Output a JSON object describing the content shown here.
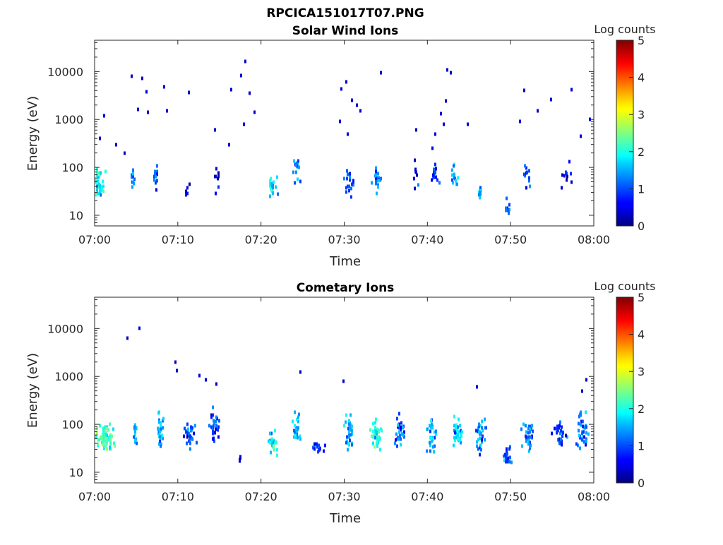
{
  "figure": {
    "title": "RPCICA151017T07.PNG"
  },
  "chart_data": [
    {
      "type": "heatmap",
      "title": "Solar Wind Ions",
      "xlabel": "Time",
      "ylabel": "Energy (eV)",
      "x_ticks": [
        "07:00",
        "07:10",
        "07:20",
        "07:30",
        "07:40",
        "07:50",
        "08:00"
      ],
      "y_ticks": [
        "10",
        "100",
        "1000",
        "10000"
      ],
      "y_scale": "log",
      "ylim": [
        6,
        45000
      ],
      "xlim_minutes": [
        0,
        60
      ],
      "colorbar": {
        "label": "Log counts",
        "ticks": [
          "0",
          "1",
          "2",
          "3",
          "4",
          "5"
        ],
        "range": [
          0,
          5
        ],
        "colormap": "jet"
      },
      "clusters": [
        {
          "t": 0.3,
          "e": 45,
          "dt": 2.2,
          "de": 2.5,
          "v": 2.2,
          "n": 45
        },
        {
          "t": 4.5,
          "e": 60,
          "dt": 0.6,
          "de": 2.0,
          "v": 1.5,
          "n": 10
        },
        {
          "t": 7.2,
          "e": 60,
          "dt": 0.7,
          "de": 3.0,
          "v": 1.4,
          "n": 14
        },
        {
          "t": 11.0,
          "e": 35,
          "dt": 0.6,
          "de": 1.8,
          "v": 0.8,
          "n": 5
        },
        {
          "t": 14.5,
          "e": 80,
          "dt": 1.0,
          "de": 3.0,
          "v": 0.8,
          "n": 8
        },
        {
          "t": 21.2,
          "e": 40,
          "dt": 1.5,
          "de": 2.0,
          "v": 2.0,
          "n": 22
        },
        {
          "t": 24.3,
          "e": 90,
          "dt": 1.0,
          "de": 2.8,
          "v": 1.8,
          "n": 14
        },
        {
          "t": 30.5,
          "e": 50,
          "dt": 1.2,
          "de": 2.5,
          "v": 1.3,
          "n": 18
        },
        {
          "t": 33.8,
          "e": 55,
          "dt": 1.2,
          "de": 2.5,
          "v": 1.6,
          "n": 20
        },
        {
          "t": 38.5,
          "e": 70,
          "dt": 0.9,
          "de": 2.5,
          "v": 1.0,
          "n": 8
        },
        {
          "t": 40.8,
          "e": 70,
          "dt": 1.0,
          "de": 2.5,
          "v": 1.3,
          "n": 14
        },
        {
          "t": 43.2,
          "e": 60,
          "dt": 1.2,
          "de": 2.3,
          "v": 1.8,
          "n": 14
        },
        {
          "t": 46.2,
          "e": 30,
          "dt": 0.8,
          "de": 1.6,
          "v": 2.0,
          "n": 10
        },
        {
          "t": 49.5,
          "e": 15,
          "dt": 0.6,
          "de": 2.0,
          "v": 1.2,
          "n": 8
        },
        {
          "t": 51.8,
          "e": 60,
          "dt": 1.0,
          "de": 2.5,
          "v": 1.3,
          "n": 12
        },
        {
          "t": 56.5,
          "e": 70,
          "dt": 1.8,
          "de": 2.5,
          "v": 0.9,
          "n": 10
        }
      ],
      "scatter": [
        {
          "t": 4.3,
          "e": 8000
        },
        {
          "t": 5.6,
          "e": 7300
        },
        {
          "t": 6.1,
          "e": 3800
        },
        {
          "t": 5.1,
          "e": 1600
        },
        {
          "t": 6.3,
          "e": 1400
        },
        {
          "t": 8.2,
          "e": 4800
        },
        {
          "t": 8.6,
          "e": 1500
        },
        {
          "t": 11.2,
          "e": 3600
        },
        {
          "t": 16.3,
          "e": 4200
        },
        {
          "t": 17.5,
          "e": 8300
        },
        {
          "t": 18.0,
          "e": 16000
        },
        {
          "t": 18.5,
          "e": 3500
        },
        {
          "t": 17.8,
          "e": 800
        },
        {
          "t": 19.1,
          "e": 1400
        },
        {
          "t": 16.0,
          "e": 300
        },
        {
          "t": 14.3,
          "e": 600
        },
        {
          "t": 29.5,
          "e": 4300
        },
        {
          "t": 30.1,
          "e": 6100
        },
        {
          "t": 30.8,
          "e": 2500
        },
        {
          "t": 31.4,
          "e": 2000
        },
        {
          "t": 29.4,
          "e": 900
        },
        {
          "t": 31.8,
          "e": 1500
        },
        {
          "t": 30.3,
          "e": 500
        },
        {
          "t": 34.3,
          "e": 9300
        },
        {
          "t": 38.5,
          "e": 600
        },
        {
          "t": 40.8,
          "e": 500
        },
        {
          "t": 41.5,
          "e": 1300
        },
        {
          "t": 42.1,
          "e": 2400
        },
        {
          "t": 42.7,
          "e": 9500
        },
        {
          "t": 42.3,
          "e": 11000
        },
        {
          "t": 41.8,
          "e": 800
        },
        {
          "t": 40.5,
          "e": 250
        },
        {
          "t": 44.7,
          "e": 800
        },
        {
          "t": 51.5,
          "e": 4000
        },
        {
          "t": 53.1,
          "e": 1500
        },
        {
          "t": 54.7,
          "e": 2600
        },
        {
          "t": 57.2,
          "e": 4200
        },
        {
          "t": 59.4,
          "e": 1000
        },
        {
          "t": 58.3,
          "e": 450
        },
        {
          "t": 51.0,
          "e": 900
        },
        {
          "t": 1.0,
          "e": 1200
        },
        {
          "t": 2.5,
          "e": 300
        },
        {
          "t": 3.5,
          "e": 200
        },
        {
          "t": 0.5,
          "e": 400
        }
      ]
    },
    {
      "type": "heatmap",
      "title": "Cometary Ions",
      "xlabel": "Time",
      "ylabel": "Energy (eV)",
      "x_ticks": [
        "07:00",
        "07:10",
        "07:20",
        "07:30",
        "07:40",
        "07:50",
        "08:00"
      ],
      "y_ticks": [
        "10",
        "100",
        "1000",
        "10000"
      ],
      "y_scale": "log",
      "ylim": [
        6,
        45000
      ],
      "xlim_minutes": [
        0,
        60
      ],
      "colorbar": {
        "label": "Log counts",
        "ticks": [
          "0",
          "1",
          "2",
          "3",
          "4",
          "5"
        ],
        "range": [
          0,
          5
        ],
        "colormap": "jet"
      },
      "clusters": [
        {
          "t": 1.0,
          "e": 50,
          "dt": 2.5,
          "de": 2.5,
          "v": 2.5,
          "n": 70
        },
        {
          "t": 4.8,
          "e": 60,
          "dt": 0.7,
          "de": 3.0,
          "v": 1.9,
          "n": 18
        },
        {
          "t": 7.7,
          "e": 70,
          "dt": 1.1,
          "de": 3.5,
          "v": 2.0,
          "n": 30
        },
        {
          "t": 11.3,
          "e": 60,
          "dt": 1.6,
          "de": 3.0,
          "v": 1.4,
          "n": 30
        },
        {
          "t": 14.3,
          "e": 100,
          "dt": 1.3,
          "de": 3.0,
          "v": 1.4,
          "n": 28
        },
        {
          "t": 17.5,
          "e": 20,
          "dt": 0.5,
          "de": 1.5,
          "v": 0.6,
          "n": 4
        },
        {
          "t": 21.3,
          "e": 45,
          "dt": 1.3,
          "de": 2.3,
          "v": 2.3,
          "n": 30
        },
        {
          "t": 24.2,
          "e": 80,
          "dt": 1.2,
          "de": 3.0,
          "v": 1.8,
          "n": 24
        },
        {
          "t": 26.8,
          "e": 30,
          "dt": 1.5,
          "de": 1.6,
          "v": 1.2,
          "n": 14
        },
        {
          "t": 30.5,
          "e": 70,
          "dt": 1.3,
          "de": 3.0,
          "v": 1.8,
          "n": 30
        },
        {
          "t": 33.7,
          "e": 65,
          "dt": 1.5,
          "de": 2.5,
          "v": 2.3,
          "n": 38
        },
        {
          "t": 36.6,
          "e": 70,
          "dt": 1.3,
          "de": 3.0,
          "v": 1.5,
          "n": 30
        },
        {
          "t": 40.4,
          "e": 60,
          "dt": 1.2,
          "de": 3.0,
          "v": 1.8,
          "n": 30
        },
        {
          "t": 43.5,
          "e": 70,
          "dt": 1.4,
          "de": 2.8,
          "v": 1.9,
          "n": 30
        },
        {
          "t": 46.3,
          "e": 60,
          "dt": 1.4,
          "de": 3.0,
          "v": 1.7,
          "n": 32
        },
        {
          "t": 49.6,
          "e": 22,
          "dt": 1.3,
          "de": 2.0,
          "v": 1.5,
          "n": 22
        },
        {
          "t": 52.0,
          "e": 60,
          "dt": 1.6,
          "de": 2.8,
          "v": 1.7,
          "n": 30
        },
        {
          "t": 55.8,
          "e": 60,
          "dt": 1.8,
          "de": 2.6,
          "v": 1.3,
          "n": 30
        },
        {
          "t": 58.5,
          "e": 70,
          "dt": 1.6,
          "de": 3.0,
          "v": 1.6,
          "n": 36
        }
      ],
      "scatter": [
        {
          "t": 3.8,
          "e": 6200
        },
        {
          "t": 5.3,
          "e": 10000
        },
        {
          "t": 9.6,
          "e": 2000
        },
        {
          "t": 9.8,
          "e": 1300
        },
        {
          "t": 12.5,
          "e": 1050
        },
        {
          "t": 13.2,
          "e": 850
        },
        {
          "t": 24.6,
          "e": 1250
        },
        {
          "t": 29.8,
          "e": 800
        },
        {
          "t": 45.8,
          "e": 600
        },
        {
          "t": 59.0,
          "e": 850
        },
        {
          "t": 58.5,
          "e": 500
        },
        {
          "t": 14.5,
          "e": 700
        }
      ]
    }
  ]
}
